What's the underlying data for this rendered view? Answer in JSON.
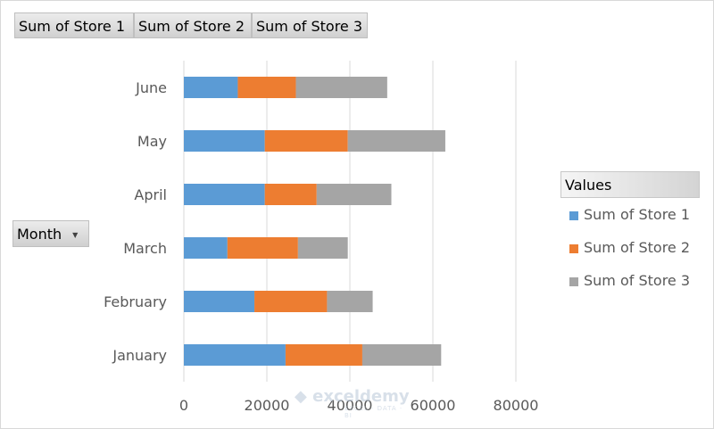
{
  "field_buttons": {
    "store1": "Sum of Store 1",
    "store2": "Sum of Store 2",
    "store3": "Sum of Store 3",
    "month": "Month"
  },
  "legend": {
    "title": "Values",
    "items": [
      "Sum of Store 1",
      "Sum of Store 2",
      "Sum of Store 3"
    ]
  },
  "watermark": {
    "name": "exceldemy",
    "tagline": "EXCEL · DATA · BI"
  },
  "colors": {
    "store1": "#5b9bd5",
    "store2": "#ed7d31",
    "store3": "#a5a5a5",
    "grid": "#d9d9d9"
  },
  "chart_data": {
    "type": "bar",
    "orientation": "horizontal",
    "stacked": true,
    "categories": [
      "January",
      "February",
      "March",
      "April",
      "May",
      "June"
    ],
    "series": [
      {
        "name": "Sum of Store 1",
        "values": [
          24500,
          17000,
          10500,
          19500,
          19500,
          13000
        ]
      },
      {
        "name": "Sum of Store 2",
        "values": [
          18500,
          17500,
          17000,
          12500,
          20000,
          14000
        ]
      },
      {
        "name": "Sum of Store 3",
        "values": [
          19000,
          11000,
          12000,
          18000,
          23500,
          22000
        ]
      }
    ],
    "xlim": [
      0,
      80000
    ],
    "xticks": [
      0,
      20000,
      40000,
      60000,
      80000
    ],
    "grid": "vertical",
    "legend_position": "right"
  }
}
